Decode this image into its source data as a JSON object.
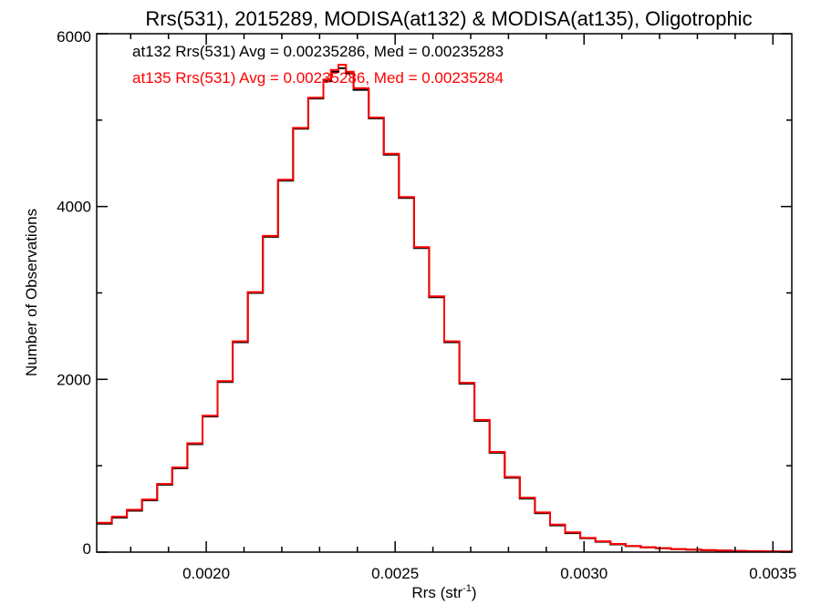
{
  "chart_data": {
    "type": "histogram-step",
    "title": "Rrs(531), 2015289, MODISA(at132) & MODISA(at135), Oligotrophic",
    "xlabel_main": "Rrs (str",
    "xlabel_sup": "-1",
    "xlabel_close": ")",
    "ylabel": "Number of Observations",
    "xlim": [
      0.00171,
      0.00355
    ],
    "ylim": [
      0,
      6000
    ],
    "x_ticks": [
      {
        "value": 0.002,
        "label": "0.0020"
      },
      {
        "value": 0.0025,
        "label": "0.0025"
      },
      {
        "value": 0.003,
        "label": "0.0030"
      },
      {
        "value": 0.0035,
        "label": "0.0035"
      }
    ],
    "x_minor_step": 0.0001,
    "y_ticks": [
      {
        "value": 0,
        "label": "0"
      },
      {
        "value": 2000,
        "label": "2000"
      },
      {
        "value": 4000,
        "label": "4000"
      },
      {
        "value": 6000,
        "label": "6000"
      }
    ],
    "y_minor_step": 1000,
    "annotations": [
      {
        "text": "at132 Rrs(531) Avg = 0.00235286, Med = 0.00235283",
        "color": "#000000"
      },
      {
        "text": "at135 Rrs(531) Avg = 0.00235286, Med = 0.00235284",
        "color": "#ff0000"
      }
    ],
    "series": [
      {
        "name": "at132",
        "color": "#000000",
        "x": [
          0.00171,
          0.00175,
          0.00179,
          0.00183,
          0.00187,
          0.00191,
          0.00195,
          0.00199,
          0.00203,
          0.00207,
          0.00211,
          0.00215,
          0.00219,
          0.00223,
          0.00227,
          0.00231,
          0.00233,
          0.00235,
          0.00237,
          0.00239,
          0.00243,
          0.00247,
          0.00251,
          0.00255,
          0.00259,
          0.00263,
          0.00267,
          0.00271,
          0.00275,
          0.00279,
          0.00283,
          0.00287,
          0.00291,
          0.00295,
          0.00299,
          0.00303,
          0.00307,
          0.00311,
          0.00315,
          0.00319,
          0.00323,
          0.00327,
          0.00331,
          0.00335,
          0.00339,
          0.00343,
          0.00347,
          0.00351,
          0.00355
        ],
        "y": [
          330,
          400,
          480,
          600,
          780,
          970,
          1250,
          1570,
          1970,
          2430,
          3000,
          3650,
          4300,
          4900,
          5250,
          5450,
          5560,
          5600,
          5540,
          5350,
          5020,
          4600,
          4100,
          3520,
          2950,
          2430,
          1950,
          1520,
          1150,
          860,
          620,
          450,
          310,
          220,
          160,
          120,
          90,
          70,
          55,
          45,
          35,
          28,
          22,
          18,
          14,
          11,
          8,
          6,
          5
        ]
      },
      {
        "name": "at135",
        "color": "#ff0000",
        "x": [
          0.00171,
          0.00175,
          0.00179,
          0.00183,
          0.00187,
          0.00191,
          0.00195,
          0.00199,
          0.00203,
          0.00207,
          0.00211,
          0.00215,
          0.00219,
          0.00223,
          0.00227,
          0.00231,
          0.00233,
          0.00235,
          0.00237,
          0.00239,
          0.00243,
          0.00247,
          0.00251,
          0.00255,
          0.00259,
          0.00263,
          0.00267,
          0.00271,
          0.00275,
          0.00279,
          0.00283,
          0.00287,
          0.00291,
          0.00295,
          0.00299,
          0.00303,
          0.00307,
          0.00311,
          0.00315,
          0.00319,
          0.00323,
          0.00327,
          0.00331,
          0.00335,
          0.00339,
          0.00343,
          0.00347,
          0.00351,
          0.00355
        ],
        "y": [
          340,
          410,
          490,
          610,
          790,
          980,
          1260,
          1580,
          1980,
          2440,
          3010,
          3660,
          4310,
          4910,
          5260,
          5470,
          5580,
          5640,
          5560,
          5370,
          5030,
          4610,
          4110,
          3530,
          2960,
          2440,
          1960,
          1530,
          1160,
          870,
          630,
          460,
          320,
          230,
          165,
          125,
          95,
          72,
          57,
          46,
          36,
          29,
          23,
          19,
          15,
          12,
          9,
          7,
          5
        ]
      }
    ]
  }
}
